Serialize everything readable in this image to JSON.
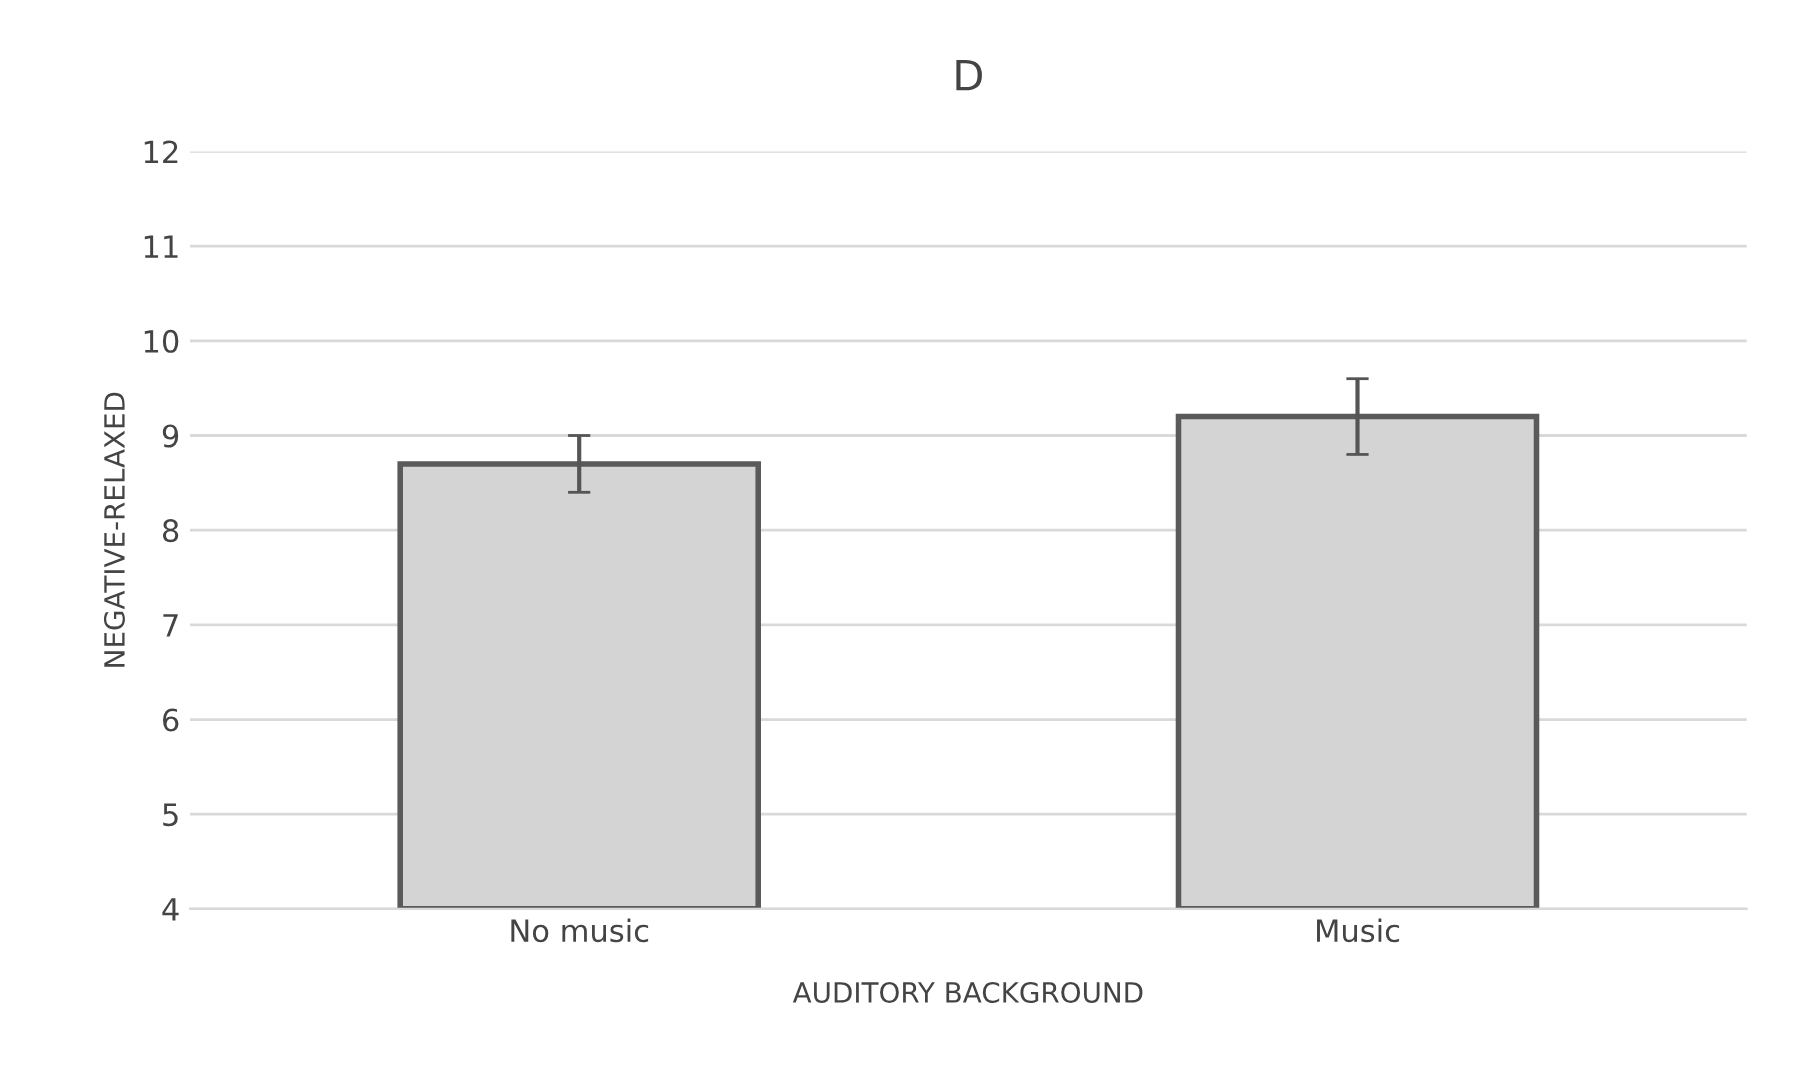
{
  "chart_data": {
    "type": "bar",
    "title": "D",
    "xlabel": "AUDITORY BACKGROUND",
    "ylabel": "NEGATIVE-RELAXED",
    "categories": [
      "No music",
      "Music"
    ],
    "values": [
      8.7,
      9.2
    ],
    "errors": [
      0.3,
      0.4
    ],
    "color": "#d4d4d4",
    "ylim": [
      4,
      12
    ],
    "yticks": [
      4,
      5,
      6,
      7,
      8,
      9,
      10,
      11,
      12
    ],
    "grid": "y"
  }
}
